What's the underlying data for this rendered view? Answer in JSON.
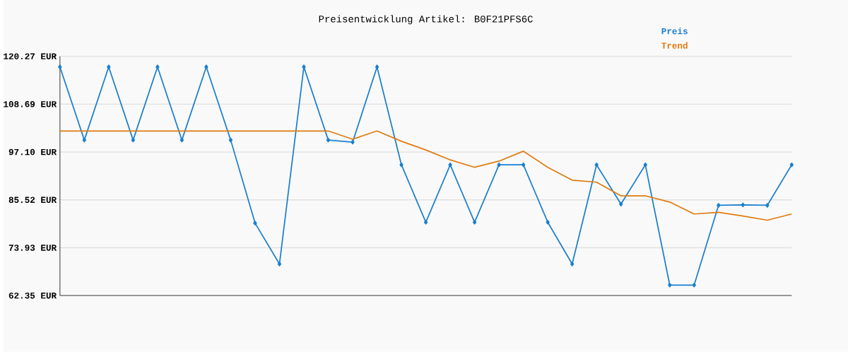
{
  "chart_data": {
    "type": "line",
    "title": "Preisentwicklung Artikel: B0F21PFS6C",
    "categories": [
      null,
      null,
      null,
      null,
      null,
      null,
      null,
      null,
      null,
      null,
      null,
      null,
      null,
      null,
      null,
      null,
      null,
      null,
      null,
      null,
      null,
      null,
      null,
      null,
      null,
      null,
      null,
      null,
      null,
      null,
      null
    ],
    "series": [
      {
        "name": "Preis",
        "color": "#1a7fcf",
        "marker": "diamond",
        "values": [
          117.7,
          100.0,
          117.7,
          100.0,
          117.7,
          100.0,
          117.7,
          100.0,
          79.9,
          70.0,
          117.7,
          100.0,
          99.5,
          117.7,
          94.0,
          80.1,
          94.0,
          80.1,
          94.0,
          94.0,
          80.1,
          70.0,
          94.0,
          84.5,
          94.0,
          64.9,
          64.9,
          84.2,
          84.3,
          84.2,
          94.0
        ]
      },
      {
        "name": "Trend",
        "color": "#e07b10",
        "values": [
          102.2,
          102.2,
          102.2,
          102.2,
          102.2,
          102.2,
          102.2,
          102.2,
          102.2,
          102.2,
          102.2,
          102.2,
          100.2,
          102.2,
          99.7,
          97.6,
          95.2,
          93.4,
          94.9,
          97.3,
          93.4,
          90.3,
          89.8,
          86.5,
          86.5,
          85.0,
          82.1,
          82.5,
          81.6,
          80.6,
          82.1
        ]
      }
    ],
    "ylim": [
      62.35,
      120.27
    ],
    "yticks": [
      {
        "value": 62.35,
        "label": "62.35 EUR"
      },
      {
        "value": 73.93,
        "label": "73.93 EUR"
      },
      {
        "value": 85.52,
        "label": "85.52 EUR"
      },
      {
        "value": 97.1,
        "label": "97.10 EUR"
      },
      {
        "value": 108.69,
        "label": "108.69 EUR"
      },
      {
        "value": 120.27,
        "label": "120.27 EUR"
      }
    ],
    "grid": "y",
    "legend": "top right",
    "line_style": "solid"
  }
}
